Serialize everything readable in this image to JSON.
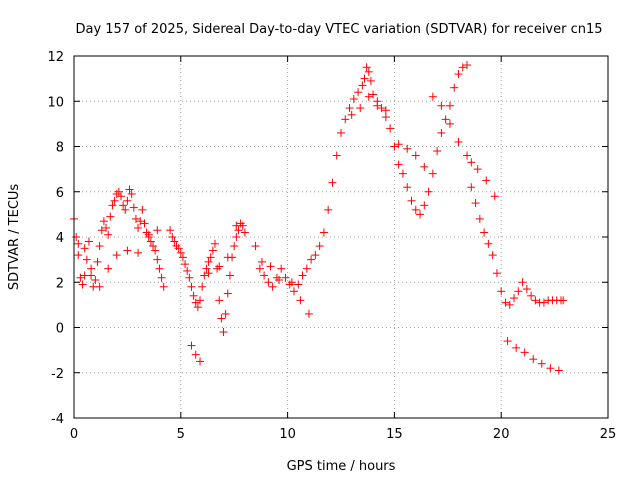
{
  "chart_data": {
    "type": "scatter",
    "title": "Day 157 of 2025, Sidereal Day-to-day VTEC variation (SDTVAR) for receiver cn15",
    "xlabel": "GPS time / hours",
    "ylabel": "SDTVAR / TECUs",
    "xlim": [
      0,
      25
    ],
    "ylim": [
      -4,
      12
    ],
    "xticks": [
      0,
      5,
      10,
      15,
      20,
      25
    ],
    "xtick_labels": [
      "0",
      "5",
      "10",
      "15",
      "20",
      "25"
    ],
    "yticks": [
      -4,
      -2,
      0,
      2,
      4,
      6,
      8,
      10,
      12
    ],
    "ytick_labels": [
      "-4",
      "-2",
      "0",
      "2",
      "4",
      "6",
      "8",
      "10",
      "12"
    ],
    "grid": true,
    "marker": "+",
    "color": "#ff0000",
    "series": [
      {
        "name": "cn15",
        "x": [
          0.0,
          0.1,
          0.2,
          0.3,
          0.4,
          0.5,
          0.6,
          0.7,
          0.8,
          0.9,
          1.0,
          1.1,
          1.2,
          1.3,
          1.4,
          1.5,
          1.6,
          1.7,
          1.8,
          1.9,
          2.0,
          2.1,
          2.2,
          2.3,
          2.4,
          2.5,
          2.6,
          2.7,
          2.8,
          2.9,
          3.0,
          3.1,
          3.2,
          3.3,
          3.4,
          3.5,
          3.6,
          3.7,
          3.8,
          3.9,
          4.0,
          4.1,
          4.2,
          4.5,
          4.6,
          4.7,
          4.8,
          4.9,
          5.0,
          5.1,
          5.2,
          5.3,
          5.4,
          5.5,
          5.6,
          5.7,
          5.8,
          5.9,
          6.0,
          6.1,
          6.2,
          6.3,
          6.4,
          6.5,
          6.6,
          6.7,
          6.8,
          6.9,
          7.0,
          7.1,
          7.2,
          7.3,
          7.4,
          7.5,
          7.6,
          7.7,
          7.8,
          7.9,
          8.0,
          8.5,
          8.7,
          8.9,
          9.1,
          9.3,
          9.5,
          9.7,
          9.9,
          10.1,
          10.3,
          10.5,
          10.7,
          10.9,
          11.1,
          11.3,
          11.5,
          11.7,
          11.9,
          12.1,
          12.3,
          12.5,
          12.7,
          12.9,
          13.1,
          13.3,
          13.5,
          13.6,
          13.7,
          13.8,
          13.9,
          14.0,
          14.2,
          14.4,
          14.6,
          14.8,
          15.0,
          15.2,
          15.4,
          15.6,
          15.8,
          16.0,
          16.2,
          16.4,
          16.6,
          16.8,
          17.0,
          17.2,
          17.4,
          17.6,
          17.8,
          18.0,
          18.2,
          18.4,
          18.6,
          18.8,
          19.0,
          19.2,
          19.4,
          19.6,
          19.8,
          20.0,
          20.2,
          20.4,
          20.6,
          20.8,
          21.0,
          21.2,
          21.4,
          21.6,
          21.8,
          22.0,
          22.2,
          22.4,
          22.6,
          22.8,
          22.9,
          0.2,
          0.5,
          0.8,
          1.2,
          1.6,
          2.0,
          2.5,
          3.0,
          3.5,
          3.9,
          5.5,
          5.7,
          5.9,
          6.3,
          6.8,
          7.2,
          7.6,
          8.8,
          9.2,
          9.6,
          10.2,
          10.6,
          11.0,
          13.0,
          13.4,
          13.8,
          14.2,
          14.6,
          15.2,
          15.6,
          16.0,
          16.4,
          16.8,
          17.2,
          17.6,
          18.0,
          18.4,
          18.6,
          18.9,
          19.3,
          19.7,
          20.3,
          20.7,
          21.1,
          21.5,
          21.9,
          22.3,
          22.7
        ],
        "y": [
          4.8,
          4.0,
          3.2,
          2.2,
          1.9,
          2.3,
          3.0,
          3.8,
          2.6,
          1.8,
          2.1,
          2.9,
          3.6,
          4.3,
          4.7,
          4.4,
          4.1,
          4.9,
          5.4,
          5.6,
          5.9,
          6.0,
          5.8,
          5.4,
          5.2,
          5.6,
          6.1,
          5.9,
          5.3,
          4.8,
          4.4,
          4.7,
          5.2,
          4.6,
          4.2,
          4.0,
          3.8,
          3.6,
          3.4,
          3.0,
          2.6,
          2.2,
          1.8,
          4.3,
          4.0,
          3.8,
          3.6,
          3.5,
          3.3,
          3.1,
          2.8,
          2.5,
          2.2,
          1.8,
          1.4,
          1.1,
          0.9,
          1.2,
          1.8,
          2.3,
          2.6,
          2.9,
          3.1,
          3.4,
          3.7,
          2.6,
          1.2,
          0.4,
          -0.2,
          0.6,
          1.5,
          2.3,
          3.1,
          3.6,
          4.0,
          4.3,
          4.6,
          4.5,
          4.2,
          3.6,
          2.6,
          2.3,
          2.0,
          1.8,
          2.2,
          2.6,
          2.2,
          1.9,
          1.6,
          1.9,
          2.3,
          2.6,
          3.0,
          3.2,
          3.6,
          4.2,
          5.2,
          6.4,
          7.6,
          8.6,
          9.2,
          9.7,
          10.1,
          10.4,
          10.7,
          11.0,
          11.5,
          11.3,
          10.9,
          10.3,
          10.0,
          9.7,
          9.3,
          8.8,
          8.0,
          7.2,
          6.8,
          6.2,
          5.6,
          5.2,
          5.0,
          5.4,
          6.0,
          6.8,
          7.8,
          8.6,
          9.2,
          9.8,
          10.6,
          11.2,
          11.5,
          11.6,
          6.2,
          5.5,
          4.8,
          4.2,
          3.7,
          3.2,
          2.4,
          1.6,
          1.1,
          1.0,
          1.3,
          1.6,
          2.0,
          1.7,
          1.4,
          1.2,
          1.1,
          1.1,
          1.2,
          1.2,
          1.2,
          1.2,
          1.2,
          3.7,
          3.5,
          2.3,
          1.8,
          2.6,
          3.2,
          3.4,
          3.3,
          4.1,
          4.3,
          -0.8,
          -1.2,
          -1.5,
          2.4,
          2.7,
          3.1,
          4.5,
          2.9,
          2.7,
          2.1,
          2.0,
          1.2,
          0.6,
          9.4,
          9.7,
          10.2,
          9.8,
          9.6,
          8.1,
          7.9,
          7.6,
          7.1,
          10.2,
          9.8,
          9.0,
          8.2,
          7.6,
          7.3,
          7.0,
          6.5,
          5.8,
          -0.6,
          -0.9,
          -1.1,
          -1.4,
          -1.6,
          -1.8,
          -1.9
        ]
      }
    ]
  }
}
